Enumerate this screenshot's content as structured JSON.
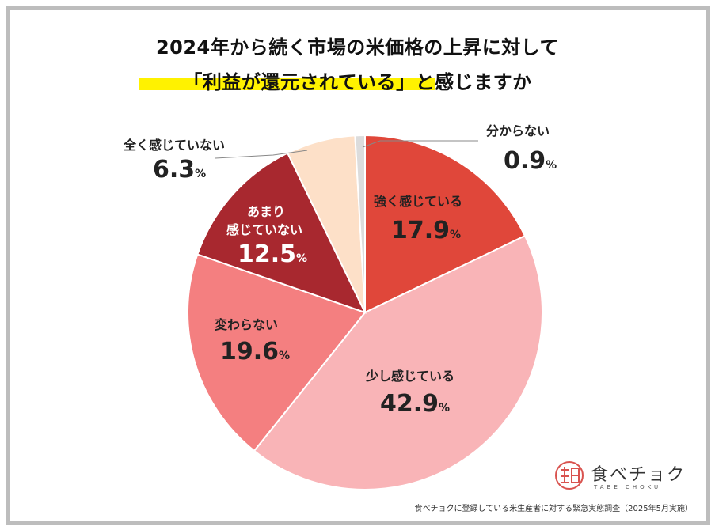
{
  "header": {
    "title_line1": "2024年から続く市場の米価格の上昇に対して",
    "title_line2": "「利益が還元されている」と感じますか"
  },
  "chart_data": {
    "type": "pie",
    "unit": "%",
    "slices": [
      {
        "label": "強く感じている",
        "value": 17.9,
        "color": "#e0473a"
      },
      {
        "label": "少し感じている",
        "value": 42.9,
        "color": "#f9b4b7"
      },
      {
        "label": "変わらない",
        "value": 19.6,
        "color": "#f47f80"
      },
      {
        "label": "あまり感じていない",
        "value": 12.5,
        "color": "#a8282f"
      },
      {
        "label": "全く感じていない",
        "value": 6.3,
        "color": "#fde0c8"
      },
      {
        "label": "分からない",
        "value": 0.9,
        "color": "#dcdcdc"
      }
    ]
  },
  "labels": {
    "strong": {
      "text": "強く感じている",
      "value": "17.9"
    },
    "little": {
      "text": "少し感じている",
      "value": "42.9"
    },
    "same": {
      "text": "変わらない",
      "value": "19.6"
    },
    "notmuch_1": "あまり",
    "notmuch_2": "感じていない",
    "notmuch_value": "12.5",
    "none": {
      "text": "全く感じていない",
      "value": "6.3"
    },
    "unknown": {
      "text": "分からない",
      "value": "0.9"
    },
    "pct": "%"
  },
  "logo": {
    "name": "食べチョク",
    "sub": "TABE CHOKU"
  },
  "source": "食べチョクに登録している米生産者に対する緊急実態調査（2025年5月実施）"
}
